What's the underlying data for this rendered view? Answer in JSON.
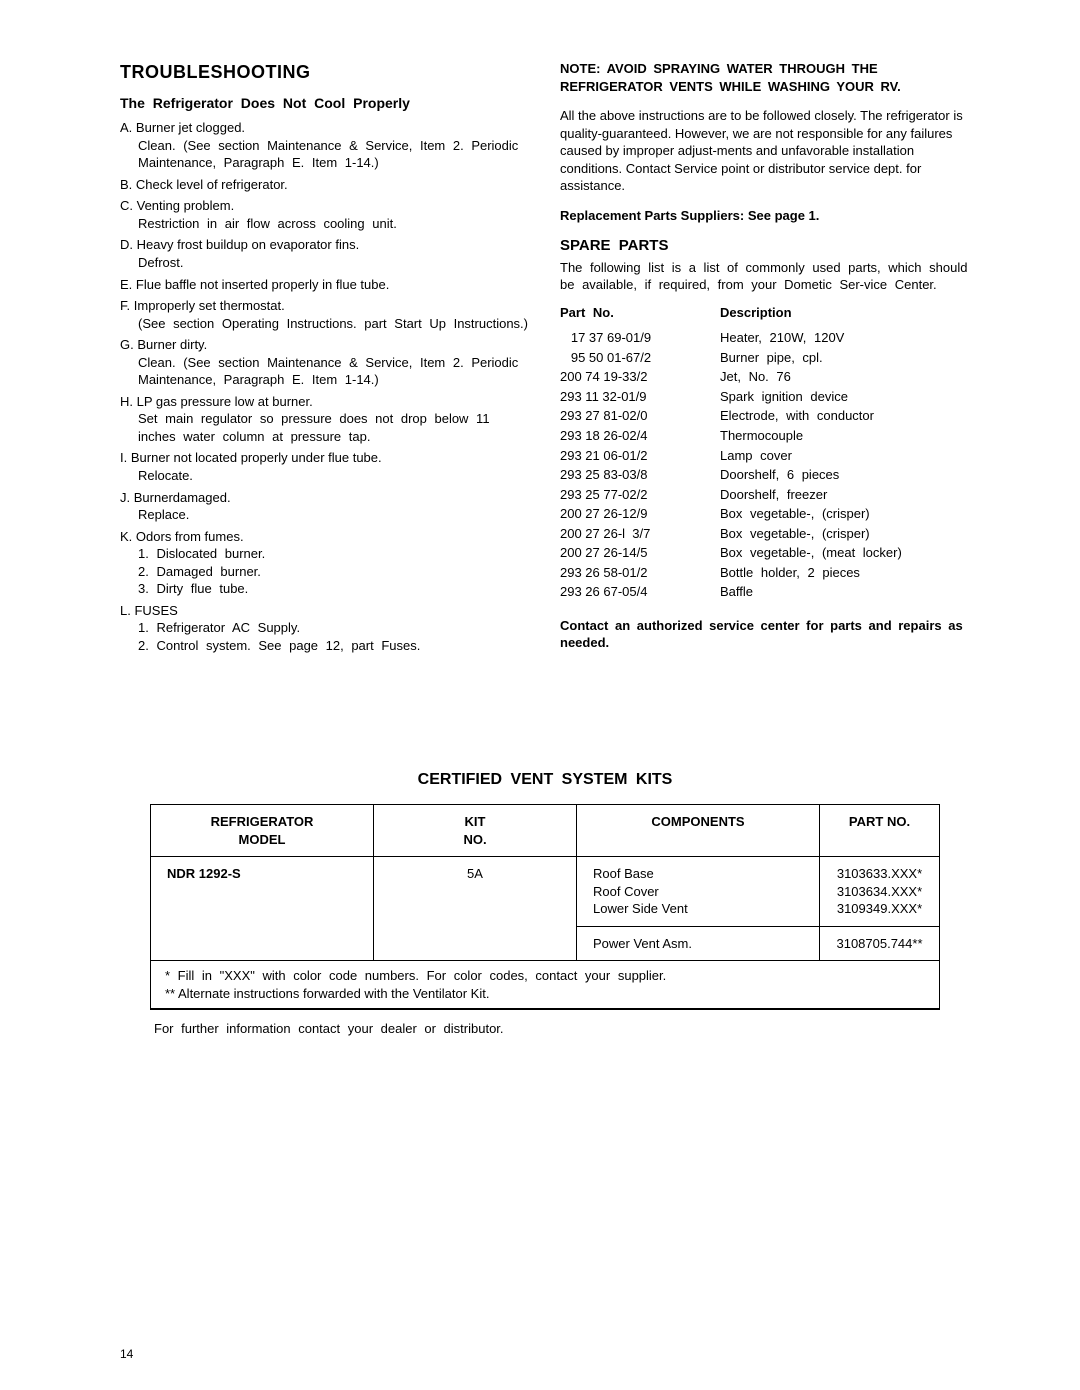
{
  "left": {
    "title": "TROUBLESHOOTING",
    "subtitle": "The Refrigerator Does Not Cool Properly",
    "items": [
      {
        "letter": "A.",
        "head": "Burner jet clogged.",
        "body": [
          "Clean. (See section Maintenance & Service, Item 2. Periodic Maintenance, Paragraph E. Item 1-14.)"
        ]
      },
      {
        "letter": "B.",
        "head": "Check level of refrigerator.",
        "body": []
      },
      {
        "letter": "C.",
        "head": "Venting problem.",
        "body": [
          "Restriction in air flow across cooling unit."
        ]
      },
      {
        "letter": "D.",
        "head": "Heavy frost buildup on evaporator fins.",
        "body": [
          "Defrost."
        ]
      },
      {
        "letter": "E.",
        "head": "Flue baffle not inserted properly in flue tube.",
        "body": []
      },
      {
        "letter": "F.",
        "head": "Improperly set thermostat.",
        "body": [
          "(See section Operating Instructions. part Start Up Instructions.)"
        ]
      },
      {
        "letter": "G.",
        "head": "Burner dirty.",
        "body": [
          "Clean. (See section Maintenance & Service, Item 2. Periodic Maintenance, Paragraph E. Item 1-14.)"
        ]
      },
      {
        "letter": "H.",
        "head": "LP gas pressure low at burner.",
        "body": [
          "Set main regulator so pressure does not drop below 11 inches water column at pressure tap."
        ]
      },
      {
        "letter": "I.",
        "head": "Burner not located properly under flue tube.",
        "body": [
          "Relocate."
        ]
      },
      {
        "letter": "J.",
        "head": "Burnerdamaged.",
        "body": [
          "Replace."
        ]
      },
      {
        "letter": "K.",
        "head": "Odors from fumes.",
        "body": [
          "1. Dislocated burner.",
          "2. Damaged burner.",
          "3. Dirty flue tube."
        ]
      },
      {
        "letter": "L.",
        "head": "FUSES",
        "body": [
          "1. Refrigerator AC Supply.",
          "2. Control system. See page 12, part Fuses."
        ]
      }
    ]
  },
  "right": {
    "note": "NOTE: AVOID SPRAYING WATER THROUGH THE REFRIGERATOR VENTS WHILE WASHING YOUR RV.",
    "para1": "All the above instructions are to be followed closely. The refrigerator is quality-guaranteed. However, we are not responsible for any failures caused by improper adjust-ments and unfavorable installation conditions. Contact Service point or distributor service dept. for assistance.",
    "repl": "Replacement Parts Suppliers: See page 1.",
    "spare_title": "SPARE PARTS",
    "spare_para": "The following list is a list of commonly used parts, which should be available, if required, from your Dometic Ser-vice Center.",
    "parts_header_no": "Part No.",
    "parts_header_desc": "Description",
    "parts": [
      {
        "n": "   17 37 69-01/9",
        "d": "Heater, 210W, 120V"
      },
      {
        "n": "   95 50 01-67/2",
        "d": "Burner pipe, cpl."
      },
      {
        "n": "200 74 19-33/2",
        "d": "Jet, No. 76"
      },
      {
        "n": "293 11 32-01/9",
        "d": "Spark ignition device"
      },
      {
        "n": "293 27 81-02/0",
        "d": "Electrode, with conductor"
      },
      {
        "n": "293 18 26-02/4",
        "d": "Thermocouple"
      },
      {
        "n": "293 21 06-01/2",
        "d": "Lamp cover"
      },
      {
        "n": "293 25 83-03/8",
        "d": "Doorshelf, 6 pieces"
      },
      {
        "n": "293 25 77-02/2",
        "d": "Doorshelf, freezer"
      },
      {
        "n": "200 27 26-12/9",
        "d": "Box vegetable-, (crisper)"
      },
      {
        "n": "200 27 26-l  3/7",
        "d": "Box vegetable-, (crisper)"
      },
      {
        "n": "200 27 26-14/5",
        "d": "Box vegetable-, (meat locker)"
      },
      {
        "n": "293 26 58-01/2",
        "d": "Bottle holder, 2 pieces"
      },
      {
        "n": "293 26 67-05/4",
        "d": "Baffle"
      }
    ],
    "contact": "Contact an authorized service center for parts and repairs as needed."
  },
  "kits": {
    "title": "CERTIFIED VENT SYSTEM KITS",
    "h1": "REFRIGERATOR MODEL",
    "h2": "KIT NO.",
    "h3": "COMPONENTS",
    "h4": "PART NO.",
    "r1c1": "NDR 1292-S",
    "r1c2": "5A",
    "r1c3": "Roof Base\nRoof Cover\nLower Side Vent",
    "r1c4": "3103633.XXX*\n3103634.XXX*\n3109349.XXX*",
    "r2c3": "Power Vent Asm.",
    "r2c4": "3108705.744**",
    "foot1": "*  Fill in \"XXX\" with color code numbers. For color codes, contact your supplier.",
    "foot2": "** Alternate instructions forwarded with the Ventilator Kit.",
    "further": "For further information contact your dealer or distributor."
  },
  "pagenum": "14"
}
